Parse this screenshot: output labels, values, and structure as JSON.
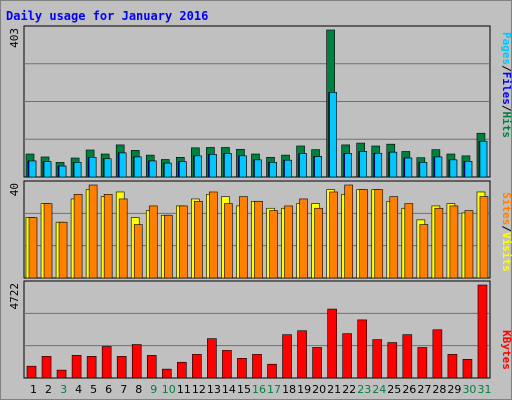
{
  "title": "Daily usage for January 2016",
  "colors": {
    "pages": "#00c8ff",
    "files": "#0000ff",
    "hits": "#008040",
    "sites": "#ff8000",
    "visits": "#ffff00",
    "kbytes": "#ff0000",
    "weekday": "#000000",
    "weekend": "#008040"
  },
  "chart_data": [
    {
      "type": "bar",
      "ymax_label": "403",
      "ylim": [
        0,
        403
      ],
      "series_labels": [
        "Pages",
        "/",
        "Files",
        "/",
        "Hits"
      ],
      "categories": [
        "1",
        "2",
        "3",
        "4",
        "5",
        "6",
        "7",
        "8",
        "9",
        "10",
        "11",
        "12",
        "13",
        "14",
        "15",
        "16",
        "17",
        "18",
        "19",
        "20",
        "21",
        "22",
        "23",
        "24",
        "25",
        "26",
        "27",
        "28",
        "29",
        "30",
        "31"
      ],
      "series": [
        {
          "name": "Hits",
          "values": [
            63,
            55,
            40,
            52,
            74,
            63,
            88,
            73,
            60,
            48,
            54,
            80,
            81,
            81,
            76,
            63,
            54,
            60,
            85,
            75,
            403,
            88,
            93,
            85,
            90,
            70,
            53,
            75,
            63,
            58,
            120
          ]
        },
        {
          "name": "Files",
          "values": [
            44,
            42,
            30,
            40,
            54,
            50,
            66,
            55,
            44,
            38,
            42,
            58,
            62,
            64,
            58,
            47,
            40,
            46,
            64,
            56,
            232,
            64,
            70,
            65,
            68,
            52,
            40,
            55,
            47,
            43,
            98
          ]
        },
        {
          "name": "Pages",
          "values": [
            44,
            42,
            30,
            40,
            54,
            50,
            66,
            55,
            44,
            38,
            42,
            58,
            62,
            64,
            58,
            47,
            40,
            46,
            64,
            56,
            232,
            64,
            70,
            65,
            68,
            52,
            40,
            55,
            47,
            43,
            98
          ]
        }
      ]
    },
    {
      "type": "bar",
      "ymax_label": "40",
      "ylim": [
        0,
        40
      ],
      "series_labels": [
        "Sites",
        "/",
        "Visits"
      ],
      "categories": [
        "1",
        "2",
        "3",
        "4",
        "5",
        "6",
        "7",
        "8",
        "9",
        "10",
        "11",
        "12",
        "13",
        "14",
        "15",
        "16",
        "17",
        "18",
        "19",
        "20",
        "21",
        "22",
        "23",
        "24",
        "25",
        "26",
        "27",
        "28",
        "29",
        "30",
        "31"
      ],
      "series": [
        {
          "name": "Visits",
          "values": [
            26,
            32,
            24,
            34,
            38,
            35,
            37,
            26,
            29,
            27,
            31,
            34,
            36,
            35,
            31,
            33,
            30,
            30,
            32,
            32,
            38,
            36,
            38,
            38,
            33,
            30,
            25,
            31,
            32,
            28,
            37
          ]
        },
        {
          "name": "Sites",
          "values": [
            26,
            32,
            24,
            36,
            40,
            36,
            34,
            23,
            31,
            27,
            31,
            33,
            37,
            32,
            35,
            33,
            29,
            31,
            34,
            30,
            37,
            40,
            38,
            38,
            35,
            32,
            23,
            30,
            31,
            29,
            35
          ]
        }
      ]
    },
    {
      "type": "bar",
      "ymax_label": "4722",
      "ylim": [
        0,
        4722
      ],
      "series_labels": [
        "KBytes"
      ],
      "categories": [
        "1",
        "2",
        "3",
        "4",
        "5",
        "6",
        "7",
        "8",
        "9",
        "10",
        "11",
        "12",
        "13",
        "14",
        "15",
        "16",
        "17",
        "18",
        "19",
        "20",
        "21",
        "22",
        "23",
        "24",
        "25",
        "26",
        "27",
        "28",
        "29",
        "30",
        "31"
      ],
      "series": [
        {
          "name": "KBytes",
          "values": [
            600,
            1100,
            400,
            1150,
            1100,
            1600,
            1100,
            1700,
            1150,
            450,
            800,
            1200,
            2000,
            1400,
            1000,
            1200,
            700,
            2200,
            2400,
            1550,
            3500,
            2250,
            2950,
            1950,
            1800,
            2200,
            1550,
            2450,
            1200,
            950,
            4722
          ]
        }
      ]
    }
  ],
  "x_labels": [
    "1",
    "2",
    "3",
    "4",
    "5",
    "6",
    "7",
    "8",
    "9",
    "10",
    "11",
    "12",
    "13",
    "14",
    "15",
    "16",
    "17",
    "18",
    "19",
    "20",
    "21",
    "22",
    "23",
    "24",
    "25",
    "26",
    "27",
    "28",
    "29",
    "30",
    "31"
  ],
  "weekend_days": [
    3,
    9,
    10,
    16,
    17,
    23,
    24,
    30,
    31
  ]
}
